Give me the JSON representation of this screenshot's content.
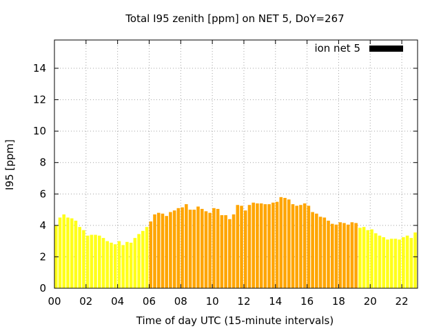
{
  "chart_data": {
    "type": "bar",
    "title": "Total I95 zenith [ppm] on NET 5, DoY=267",
    "xlabel": "Time of day UTC (15-minute intervals)",
    "ylabel": "I95 [ppm]",
    "xlim": [
      0,
      23
    ],
    "ylim": [
      0,
      15.8
    ],
    "xticks": [
      0,
      2,
      4,
      6,
      8,
      10,
      12,
      14,
      16,
      18,
      20,
      22
    ],
    "xtick_labels": [
      "00",
      "02",
      "04",
      "06",
      "08",
      "10",
      "12",
      "14",
      "16",
      "18",
      "20",
      "22"
    ],
    "yticks": [
      0,
      2,
      4,
      6,
      8,
      10,
      12,
      14
    ],
    "ytick_labels": [
      "0",
      "2",
      "4",
      "6",
      "8",
      "10",
      "12",
      "14"
    ],
    "grid": true,
    "legend": {
      "position": "top-right",
      "entries": [
        {
          "label": "ion net 5",
          "color": "#000000"
        }
      ]
    },
    "colors": {
      "night": "#ffff1a",
      "day": "#ffa500"
    },
    "day_window_hours": [
      6.0,
      19.25
    ],
    "bar_interval_hours": 0.25,
    "values": [
      4.0,
      4.5,
      4.7,
      4.5,
      4.45,
      4.3,
      3.9,
      3.7,
      3.35,
      3.4,
      3.4,
      3.35,
      3.2,
      3.0,
      2.9,
      2.8,
      3.0,
      2.75,
      2.95,
      2.9,
      3.2,
      3.45,
      3.65,
      3.9,
      4.25,
      4.7,
      4.8,
      4.75,
      4.6,
      4.85,
      4.95,
      5.1,
      5.15,
      5.35,
      5.0,
      5.0,
      5.2,
      5.05,
      4.9,
      4.8,
      5.1,
      5.05,
      4.65,
      4.65,
      4.4,
      4.7,
      5.3,
      5.25,
      4.95,
      5.3,
      5.45,
      5.4,
      5.4,
      5.35,
      5.35,
      5.45,
      5.5,
      5.8,
      5.75,
      5.65,
      5.35,
      5.25,
      5.3,
      5.4,
      5.25,
      4.85,
      4.75,
      4.55,
      4.5,
      4.3,
      4.1,
      4.05,
      4.2,
      4.15,
      4.05,
      4.2,
      4.15,
      3.85,
      3.9,
      3.7,
      3.75,
      3.5,
      3.35,
      3.25,
      3.1,
      3.15,
      3.15,
      3.1,
      3.25,
      3.35,
      3.2,
      3.55
    ]
  }
}
